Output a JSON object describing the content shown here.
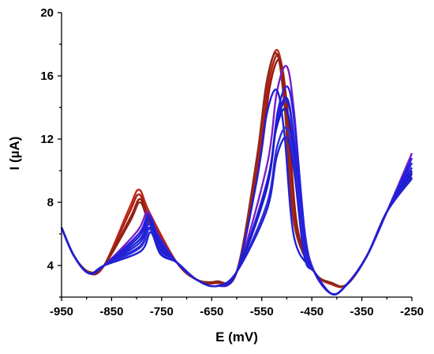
{
  "chart_data": {
    "type": "line",
    "title": "",
    "xlabel": "E (mV)",
    "ylabel": "I (µA)",
    "xlim": [
      -950,
      -250
    ],
    "ylim": [
      2,
      20
    ],
    "xticks": [
      "-950",
      "-850",
      "-750",
      "-650",
      "-550",
      "-450",
      "-350",
      "-250"
    ],
    "yticks": [
      "4",
      "8",
      "12",
      "16",
      "20"
    ],
    "grid": false,
    "legend": "none",
    "colors": {
      "red_family": "#b21a12",
      "blue_family": "#1f1fd8",
      "purple": "#7a1fc8"
    },
    "series": [
      {
        "color": "#c0281a",
        "peak1": 8.8,
        "peak2": 17.6,
        "p1x": -795,
        "p2x": -518,
        "min1": 3.5,
        "mid": 2.9,
        "min3": 2.8,
        "end": 10.0
      },
      {
        "color": "#b01f14",
        "peak1": 8.5,
        "peak2": 17.3,
        "p1x": -795,
        "p2x": -516,
        "min1": 3.5,
        "mid": 2.9,
        "min3": 2.85,
        "end": 9.8
      },
      {
        "color": "#9a1a10",
        "peak1": 8.2,
        "peak2": 17.0,
        "p1x": -793,
        "p2x": -514,
        "min1": 3.5,
        "mid": 2.9,
        "min3": 2.9,
        "end": 9.6
      },
      {
        "color": "#8a2a1a",
        "peak1": 8.0,
        "peak2": 17.4,
        "p1x": -793,
        "p2x": -520,
        "min1": 3.6,
        "mid": 3.0,
        "min3": 2.9,
        "end": 9.9
      },
      {
        "color": "#7a1fc8",
        "peak1": 7.4,
        "peak2": 16.6,
        "p1x": -778,
        "p2x": -500,
        "min1": 3.5,
        "mid": 2.7,
        "min3": 2.2,
        "end": 11.1
      },
      {
        "color": "#2a20e0",
        "peak1": 7.2,
        "peak2": 15.3,
        "p1x": -776,
        "p2x": -498,
        "min1": 3.5,
        "mid": 2.7,
        "min3": 2.2,
        "end": 10.8
      },
      {
        "color": "#2020d8",
        "peak1": 7.0,
        "peak2": 15.1,
        "p1x": -776,
        "p2x": -520,
        "min1": 3.5,
        "mid": 2.7,
        "min3": 2.2,
        "end": 10.5
      },
      {
        "color": "#1f1fd0",
        "peak1": 6.8,
        "peak2": 14.6,
        "p1x": -775,
        "p2x": -500,
        "min1": 3.5,
        "mid": 2.7,
        "min3": 2.2,
        "end": 10.2
      },
      {
        "color": "#2424d8",
        "peak1": 6.6,
        "peak2": 14.4,
        "p1x": -775,
        "p2x": -500,
        "min1": 3.5,
        "mid": 2.7,
        "min3": 2.2,
        "end": 10.0
      },
      {
        "color": "#1a1acc",
        "peak1": 6.4,
        "peak2": 13.9,
        "p1x": -774,
        "p2x": -502,
        "min1": 3.5,
        "mid": 2.7,
        "min3": 2.2,
        "end": 9.8
      },
      {
        "color": "#3030e0",
        "peak1": 6.3,
        "peak2": 12.7,
        "p1x": -774,
        "p2x": -500,
        "min1": 3.5,
        "mid": 2.7,
        "min3": 2.2,
        "end": 9.6
      },
      {
        "color": "#2020d0",
        "peak1": 6.1,
        "peak2": 12.1,
        "p1x": -772,
        "p2x": -500,
        "min1": 3.5,
        "mid": 2.7,
        "min3": 2.2,
        "end": 9.5
      }
    ]
  }
}
